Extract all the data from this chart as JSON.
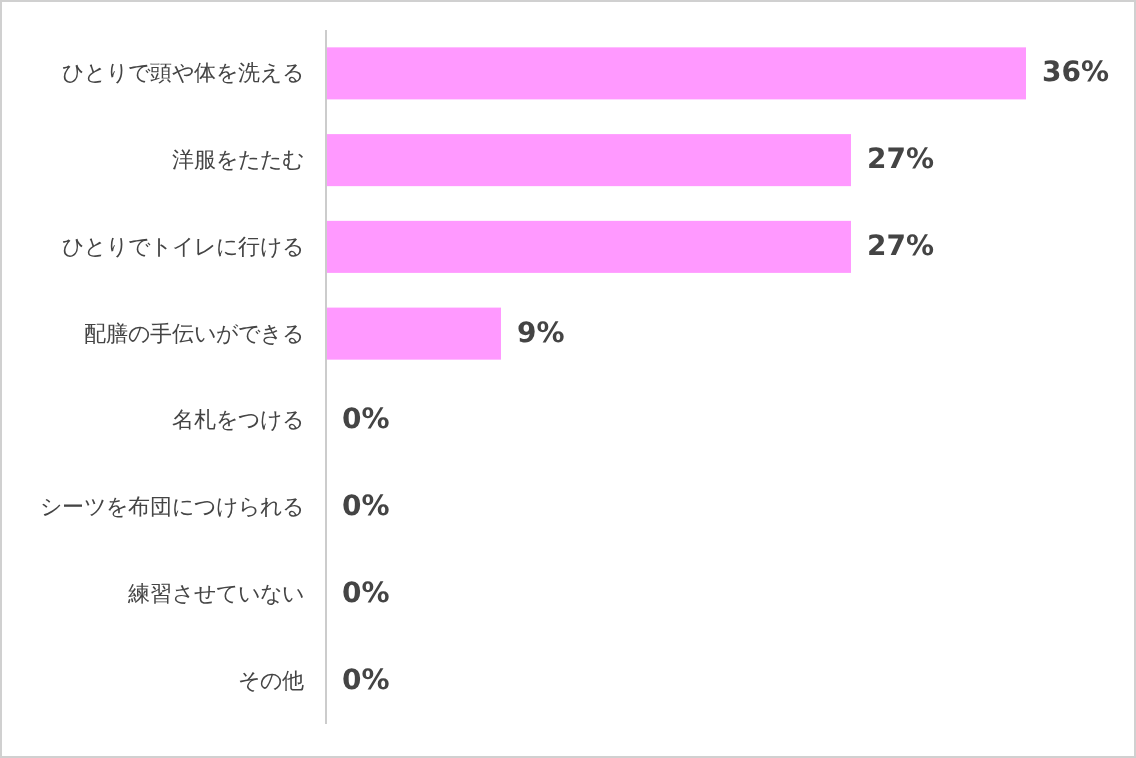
{
  "chart_data": {
    "type": "bar",
    "orientation": "horizontal",
    "categories": [
      "ひとりで頭や体を洗える",
      "洋服をたたむ",
      "ひとりでトイレに行ける",
      "配膳の手伝いができる",
      "名札をつける",
      "シーツを布団につけられる",
      "練習させていない",
      "その他"
    ],
    "values": [
      36,
      27,
      27,
      9,
      0,
      0,
      0,
      0
    ],
    "color": "#ff99ff",
    "value_labels": [
      "36%",
      "27%",
      "27%",
      "9%",
      "0%",
      "0%",
      "0%",
      "0%"
    ]
  }
}
